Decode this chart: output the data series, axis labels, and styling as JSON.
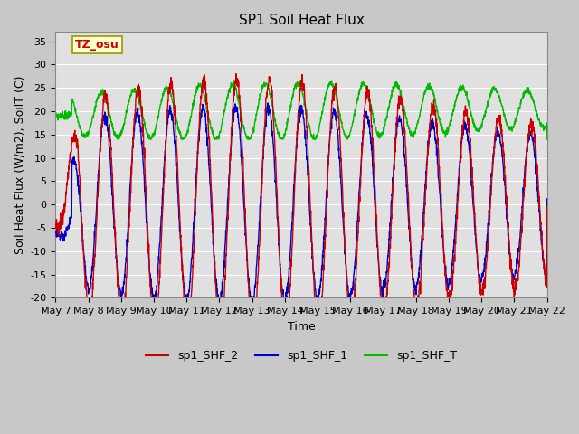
{
  "title": "SP1 Soil Heat Flux",
  "xlabel": "Time",
  "ylabel": "Soil Heat Flux (W/m2), SoilT (C)",
  "ylim": [
    -20,
    37
  ],
  "yticks": [
    -20,
    -15,
    -10,
    -5,
    0,
    5,
    10,
    15,
    20,
    25,
    30,
    35
  ],
  "xtick_labels": [
    "May 7",
    "May 8",
    "May 9",
    "May 10",
    "May 11",
    "May 12",
    "May 13",
    "May 14",
    "May 15",
    "May 16",
    "May 17",
    "May 18",
    "May 19",
    "May 20",
    "May 21",
    "May 22"
  ],
  "color_shf2": "#cc0000",
  "color_shf1": "#0000cc",
  "color_shft": "#00bb00",
  "legend_labels": [
    "sp1_SHF_2",
    "sp1_SHF_1",
    "sp1_SHF_T"
  ],
  "annotation_text": "TZ_osu",
  "annotation_color": "#cc0000",
  "annotation_bg": "#ffffcc",
  "annotation_border": "#999900",
  "fig_bg": "#c8c8c8",
  "plot_bg": "#e0e0e0",
  "grid_color": "#ffffff",
  "n_days": 15,
  "points_per_day": 144,
  "title_fontsize": 11,
  "label_fontsize": 9,
  "tick_fontsize": 8,
  "legend_fontsize": 9
}
